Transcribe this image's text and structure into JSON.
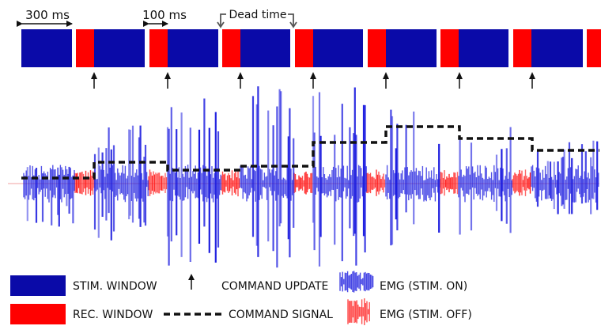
{
  "labels": {
    "window_300ms": "300 ms",
    "window_100ms": "100 ms",
    "dead_time": "Dead time"
  },
  "legend": {
    "stim_window": "STIM. WINDOW",
    "rec_window": "REC. WINDOW",
    "command_update": "COMMAND UPDATE",
    "command_signal": "COMMAND SIGNAL",
    "emg_on": "EMG (STIM. ON)",
    "emg_off": "EMG (STIM. OFF)"
  },
  "colors": {
    "stim": "#0a0aa8",
    "rec": "#ff0000",
    "emg_on": "#1a1adf",
    "emg_off": "#ff2020",
    "command": "#111111"
  },
  "timeline": {
    "sequence": [
      "stim",
      "rec",
      "stim",
      "rec",
      "stim",
      "rec",
      "stim",
      "rec",
      "stim",
      "rec",
      "stim",
      "rec",
      "stim",
      "rec",
      "stim",
      "rec",
      "stim",
      "rec"
    ]
  },
  "command_signal_levels": [
    0.15,
    0.35,
    0.25,
    0.3,
    0.6,
    0.8,
    0.65,
    0.5
  ]
}
